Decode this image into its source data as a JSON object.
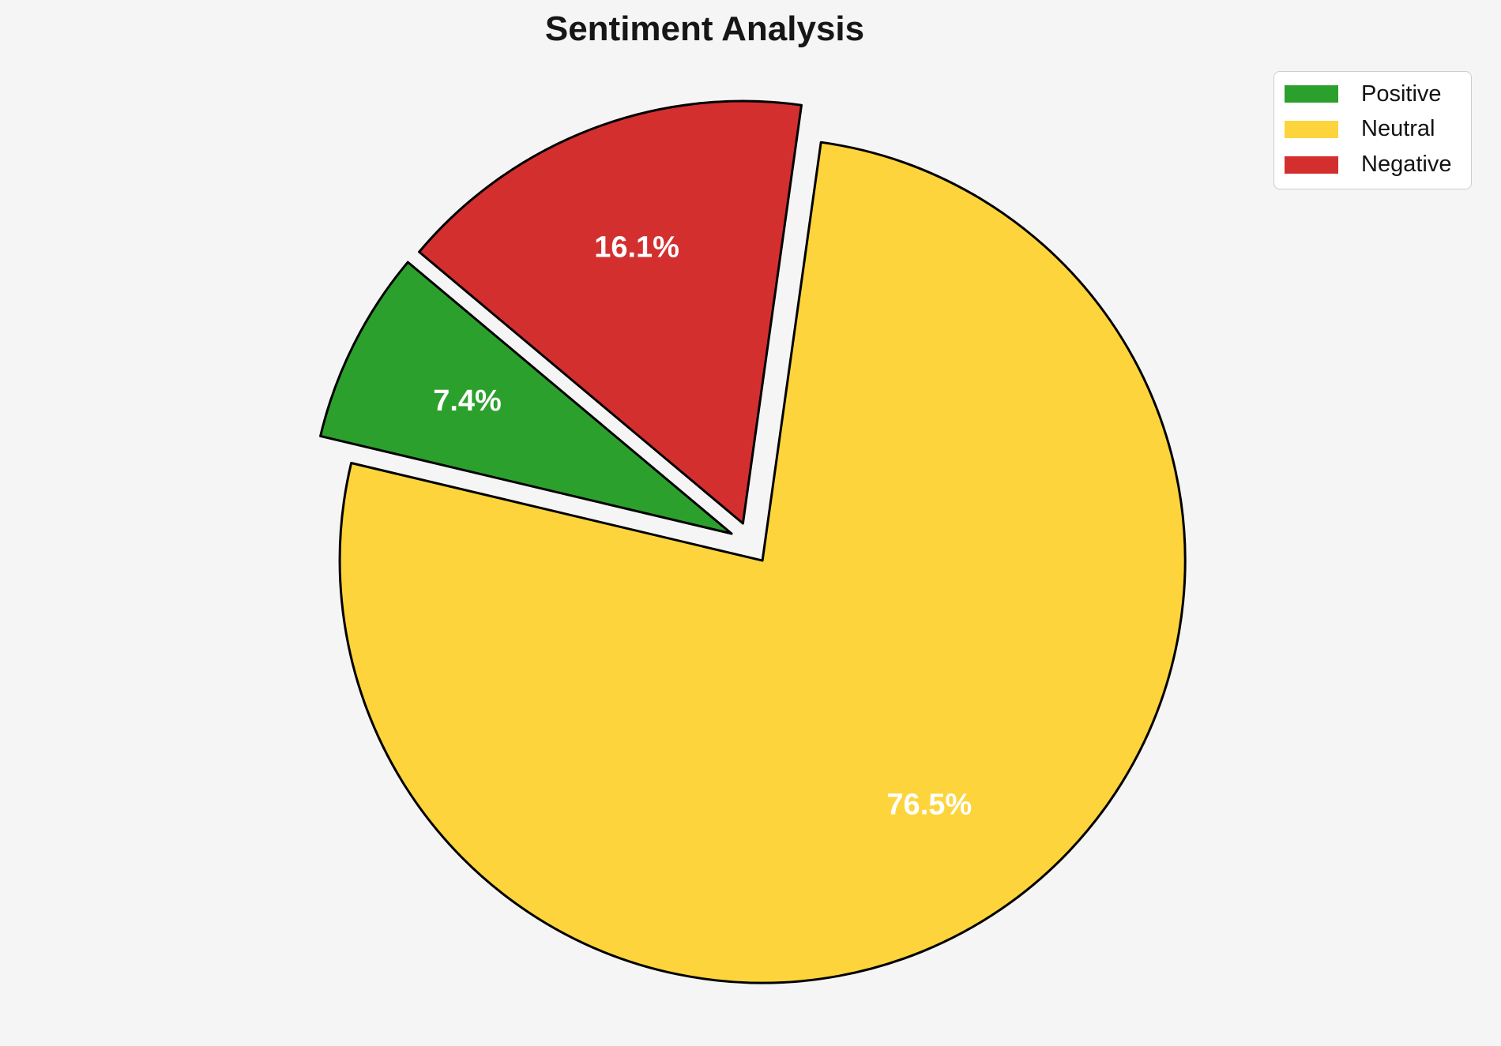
{
  "page": {
    "background": "#f5f5f6"
  },
  "chart_data": {
    "type": "pie",
    "title": "Sentiment Analysis",
    "categories": [
      "Positive",
      "Neutral",
      "Negative"
    ],
    "values": [
      7.4,
      76.5,
      16.1
    ],
    "pct_labels": [
      "7.4%",
      "76.5%",
      "16.1%"
    ],
    "colors": [
      "#2ca02c",
      "#fdd43b",
      "#d32f2f"
    ],
    "start_angle": 140,
    "direction": "counterclockwise",
    "explode": [
      0.05,
      0.05,
      0.05
    ],
    "pct_distance": 0.7,
    "wedge_edge_color": "#000000",
    "wedge_edge_width": 3,
    "pct_label_color": "#ffffff",
    "title_color": "#161616",
    "legend": {
      "position": "upper right",
      "entries": [
        "Positive",
        "Neutral",
        "Negative"
      ],
      "text_color": "#131313",
      "background": "#ffffff",
      "border_color": "#cccccc"
    }
  }
}
